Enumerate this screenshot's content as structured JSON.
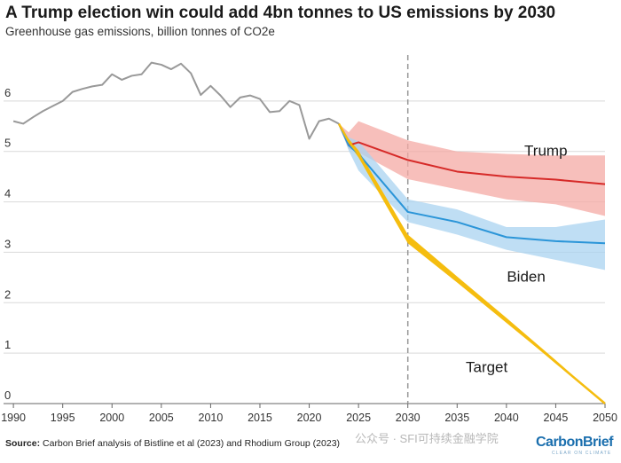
{
  "header": {
    "title": "A Trump election win could add 4bn tonnes to US emissions by 2030",
    "subtitle": "Greenhouse gas emissions, billion tonnes of CO2e"
  },
  "footer": {
    "source_label": "Source:",
    "source_text": "Carbon Brief analysis of Bistline et al (2023) and Rhodium Group (2023)",
    "watermark": "公众号 · SFI可持续金融学院",
    "logo_text": "CarbonBrief",
    "logo_tagline": "CLEAR ON CLIMATE"
  },
  "colors": {
    "historical": "#999999",
    "trump": "#d62a28",
    "trump_band": "#f4a9a4",
    "biden": "#2b95d8",
    "biden_band": "#a9d3f0",
    "target": "#f5bd0f",
    "gridline": "#d9d9d9",
    "marker_2030": "#999999"
  },
  "chart_data": {
    "type": "line",
    "xlim": [
      1989,
      2050
    ],
    "ylim": [
      0,
      7
    ],
    "x_ticks": [
      1990,
      1995,
      2000,
      2005,
      2010,
      2015,
      2020,
      2025,
      2030,
      2035,
      2040,
      2045,
      2050
    ],
    "y_ticks": [
      0,
      1,
      2,
      3,
      4,
      5,
      6
    ],
    "grid": true,
    "vertical_marker_year": 2030,
    "historical": {
      "x": [
        1990,
        1991,
        1992,
        1993,
        1994,
        1995,
        1996,
        1997,
        1998,
        1999,
        2000,
        2001,
        2002,
        2003,
        2004,
        2005,
        2006,
        2007,
        2008,
        2009,
        2010,
        2011,
        2012,
        2013,
        2014,
        2015,
        2016,
        2017,
        2018,
        2019,
        2020,
        2021,
        2022,
        2023
      ],
      "y": [
        5.6,
        5.55,
        5.68,
        5.8,
        5.9,
        6.0,
        6.18,
        6.24,
        6.29,
        6.32,
        6.53,
        6.42,
        6.5,
        6.53,
        6.76,
        6.72,
        6.63,
        6.74,
        6.55,
        6.12,
        6.3,
        6.11,
        5.88,
        6.07,
        6.11,
        6.04,
        5.78,
        5.8,
        6.0,
        5.92,
        5.25,
        5.6,
        5.65,
        5.55
      ]
    },
    "series": [
      {
        "name": "Trump",
        "x": [
          2023,
          2024,
          2025,
          2030,
          2035,
          2040,
          2045,
          2050
        ],
        "y": [
          5.55,
          5.12,
          5.18,
          4.83,
          4.6,
          4.5,
          4.44,
          4.35
        ],
        "band_low": [
          5.55,
          5.05,
          4.98,
          4.45,
          4.25,
          4.05,
          3.95,
          3.72
        ],
        "band_high": [
          5.55,
          5.38,
          5.6,
          5.22,
          5.0,
          4.95,
          4.92,
          4.92
        ]
      },
      {
        "name": "Biden",
        "x": [
          2023,
          2024,
          2025,
          2030,
          2035,
          2040,
          2045,
          2050
        ],
        "y": [
          5.55,
          5.12,
          4.95,
          3.8,
          3.6,
          3.3,
          3.22,
          3.18
        ],
        "band_low": [
          5.55,
          5.02,
          4.62,
          3.6,
          3.35,
          3.05,
          2.85,
          2.65
        ],
        "band_high": [
          5.55,
          5.28,
          5.2,
          4.05,
          3.85,
          3.5,
          3.5,
          3.65
        ]
      },
      {
        "name": "Target",
        "x": [
          2023,
          2024,
          2025,
          2030,
          2035,
          2040,
          2045,
          2050
        ],
        "y": [
          5.55,
          5.2,
          4.95,
          3.25,
          2.45,
          1.65,
          0.82,
          0.0
        ],
        "band_low": [
          5.55,
          5.15,
          4.88,
          3.18,
          2.4,
          1.6,
          0.8,
          0.0
        ],
        "band_high": [
          5.55,
          5.25,
          5.02,
          3.35,
          2.52,
          1.7,
          0.86,
          0.0
        ]
      }
    ],
    "annotations": [
      "Trump",
      "Biden",
      "Target"
    ]
  }
}
